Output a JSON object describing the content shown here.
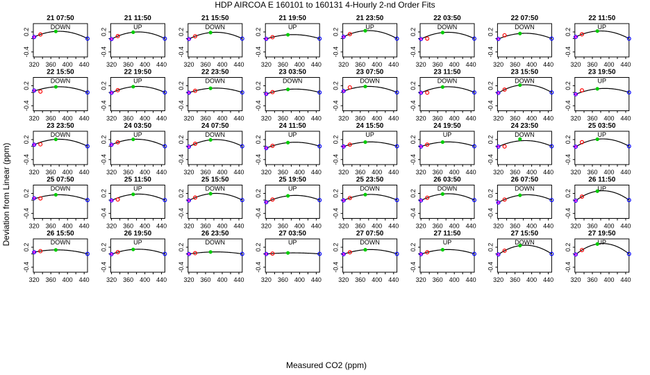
{
  "chart_data": {
    "type": "scatter",
    "title": "HDP   AIRCOA E   160101 to 160131   4-Hourly 2-nd Order Fits",
    "xlabel": "Measured CO2 (ppm)",
    "ylabel": "Deviation from Linear (ppm)",
    "xlim": [
      318,
      448
    ],
    "ylim": [
      -0.55,
      0.45
    ],
    "xticks": [
      320,
      360,
      400,
      440
    ],
    "xtick_minor": [
      340,
      380,
      420
    ],
    "yticks": [
      -0.4,
      0.0,
      0.2
    ],
    "ytick_labels_shown": [
      "-0.4",
      "0.2"
    ],
    "grid": false,
    "x_standards": [
      320,
      335,
      372,
      448
    ],
    "marker_colors": {
      "s1": "#0000ff",
      "s2": "#ff0000",
      "s3": "#00cc00",
      "s4": "#0000ff"
    },
    "panels": [
      {
        "time": "21 07:50",
        "dir": "DOWN",
        "a": 0.22,
        "v": 380,
        "off": [
          0,
          0,
          0,
          0
        ]
      },
      {
        "time": "21 11:50",
        "dir": "UP",
        "a": 0.2,
        "v": 385,
        "off": [
          0,
          0,
          0,
          0
        ]
      },
      {
        "time": "21 15:50",
        "dir": "DOWN",
        "a": 0.19,
        "v": 385,
        "off": [
          0,
          0,
          0,
          0
        ]
      },
      {
        "time": "21 19:50",
        "dir": "UP",
        "a": 0.12,
        "v": 385,
        "off": [
          0,
          0,
          0,
          0
        ]
      },
      {
        "time": "21 23:50",
        "dir": "UP",
        "a": 0.24,
        "v": 380,
        "off": [
          0,
          0,
          0,
          0
        ]
      },
      {
        "time": "22 03:50",
        "dir": "DOWN",
        "a": 0.19,
        "v": 385,
        "off": [
          0,
          -0.07,
          0,
          0
        ]
      },
      {
        "time": "22 07:50",
        "dir": "DOWN",
        "a": 0.16,
        "v": 385,
        "off": [
          0,
          0.04,
          0,
          0
        ]
      },
      {
        "time": "22 11:50",
        "dir": "UP",
        "a": 0.23,
        "v": 380,
        "off": [
          0,
          0,
          0,
          0
        ]
      },
      {
        "time": "22 15:50",
        "dir": "DOWN",
        "a": 0.17,
        "v": 380,
        "off": [
          0.02,
          -0.07,
          0,
          0
        ]
      },
      {
        "time": "22 19:50",
        "dir": "UP",
        "a": 0.18,
        "v": 385,
        "off": [
          0,
          0,
          0,
          0
        ]
      },
      {
        "time": "22 23:50",
        "dir": "DOWN",
        "a": 0.13,
        "v": 385,
        "off": [
          0,
          0,
          0,
          0
        ]
      },
      {
        "time": "23 03:50",
        "dir": "DOWN",
        "a": 0.1,
        "v": 390,
        "off": [
          0,
          0,
          0,
          0
        ]
      },
      {
        "time": "23 07:50",
        "dir": "DOWN",
        "a": 0.18,
        "v": 380,
        "off": [
          0,
          0.05,
          0,
          0
        ]
      },
      {
        "time": "23 11:50",
        "dir": "DOWN",
        "a": 0.17,
        "v": 385,
        "off": [
          0,
          -0.07,
          0,
          0
        ]
      },
      {
        "time": "23 15:50",
        "dir": "DOWN",
        "a": 0.23,
        "v": 385,
        "off": [
          0,
          0,
          0,
          0
        ]
      },
      {
        "time": "23 19:50",
        "dir": "UP",
        "a": 0.12,
        "v": 390,
        "off": [
          0,
          0.05,
          0,
          0
        ]
      },
      {
        "time": "23 23:50",
        "dir": "DOWN",
        "a": 0.21,
        "v": 380,
        "off": [
          0,
          -0.06,
          0,
          0
        ]
      },
      {
        "time": "24 03:50",
        "dir": "UP",
        "a": 0.21,
        "v": 380,
        "off": [
          0,
          0,
          0,
          0
        ]
      },
      {
        "time": "24 07:50",
        "dir": "DOWN",
        "a": 0.2,
        "v": 385,
        "off": [
          0,
          0,
          0,
          0
        ]
      },
      {
        "time": "24 11:50",
        "dir": "UP",
        "a": 0.12,
        "v": 390,
        "off": [
          0,
          0,
          0,
          0
        ]
      },
      {
        "time": "24 15:50",
        "dir": "UP",
        "a": 0.13,
        "v": 385,
        "off": [
          0,
          0,
          0,
          0
        ]
      },
      {
        "time": "24 19:50",
        "dir": "UP",
        "a": 0.13,
        "v": 385,
        "off": [
          0,
          0,
          0,
          0
        ]
      },
      {
        "time": "24 23:50",
        "dir": "DOWN",
        "a": 0.17,
        "v": 385,
        "off": [
          0,
          -0.07,
          0.05,
          0
        ]
      },
      {
        "time": "25 03:50",
        "dir": "UP",
        "a": 0.22,
        "v": 385,
        "off": [
          0,
          0.04,
          0,
          0
        ]
      },
      {
        "time": "25 07:50",
        "dir": "DOWN",
        "a": 0.16,
        "v": 380,
        "off": [
          0.02,
          -0.04,
          0,
          0
        ]
      },
      {
        "time": "25 11:50",
        "dir": "UP",
        "a": 0.18,
        "v": 385,
        "off": [
          0,
          -0.05,
          0,
          0
        ]
      },
      {
        "time": "25 15:50",
        "dir": "DOWN",
        "a": 0.2,
        "v": 385,
        "off": [
          0,
          0,
          0,
          0
        ]
      },
      {
        "time": "25 19:50",
        "dir": "UP",
        "a": 0.14,
        "v": 390,
        "off": [
          0,
          0,
          0,
          0
        ]
      },
      {
        "time": "25 23:50",
        "dir": "DOWN",
        "a": 0.17,
        "v": 385,
        "off": [
          0,
          0,
          0,
          0
        ]
      },
      {
        "time": "26 03:50",
        "dir": "DOWN",
        "a": 0.19,
        "v": 385,
        "off": [
          0,
          0,
          0,
          0
        ]
      },
      {
        "time": "26 07:50",
        "dir": "DOWN",
        "a": 0.16,
        "v": 390,
        "off": [
          0,
          0,
          0,
          0
        ]
      },
      {
        "time": "26 11:50",
        "dir": "UP",
        "a": 0.28,
        "v": 385,
        "off": [
          0,
          0,
          0,
          0
        ]
      },
      {
        "time": "26 15:50",
        "dir": "DOWN",
        "a": 0.12,
        "v": 375,
        "off": [
          0,
          0,
          0,
          0
        ]
      },
      {
        "time": "26 19:50",
        "dir": "UP",
        "a": 0.14,
        "v": 385,
        "off": [
          0,
          0,
          0,
          0
        ]
      },
      {
        "time": "26 23:50",
        "dir": "DOWN",
        "a": 0.06,
        "v": 385,
        "off": [
          0,
          0,
          0,
          0
        ]
      },
      {
        "time": "27 03:50",
        "dir": "UP",
        "a": 0.03,
        "v": 385,
        "off": [
          0,
          0,
          0,
          0
        ]
      },
      {
        "time": "27 07:50",
        "dir": "DOWN",
        "a": 0.13,
        "v": 385,
        "off": [
          0,
          0,
          0,
          0
        ]
      },
      {
        "time": "27 11:50",
        "dir": "UP",
        "a": 0.13,
        "v": 385,
        "off": [
          0,
          0,
          0,
          0
        ]
      },
      {
        "time": "27 15:50",
        "dir": "DOWN",
        "a": 0.26,
        "v": 385,
        "off": [
          0,
          0,
          0,
          0
        ]
      },
      {
        "time": "27 19:50",
        "dir": "UP",
        "a": 0.31,
        "v": 385,
        "off": [
          0,
          0,
          0,
          0
        ]
      }
    ]
  }
}
